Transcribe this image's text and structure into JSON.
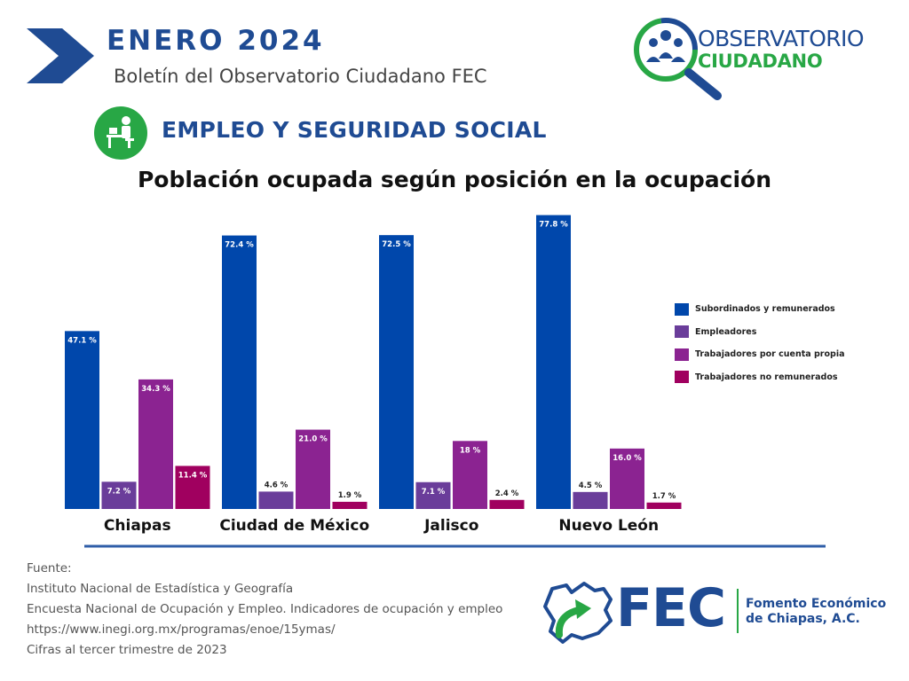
{
  "header": {
    "month": "ENERO  2024",
    "subtitle": "Boletín del Observatorio Ciudadano FEC",
    "section": "EMPLEO Y SEGURIDAD SOCIAL",
    "observatory_line1": "OBSERVATORIO",
    "observatory_line2": "CIUDADANO"
  },
  "icons": {
    "header_arrow": "chevron-arrow-icon",
    "section": "worker-at-desk-icon",
    "observatory": "magnifier-people-icon",
    "fec_map": "chiapas-map-arrow-icon"
  },
  "colors": {
    "brand_blue": "#1f4b93",
    "brand_green": "#28a745",
    "axis_line": "#2f5ea8"
  },
  "chart_data": {
    "type": "bar",
    "title": "Población ocupada según posición en la ocupación",
    "categories": [
      "Chiapas",
      "Ciudad de México",
      "Jalisco",
      "Nuevo León"
    ],
    "series": [
      {
        "name": "Subordinados y remunerados",
        "color": "#0047ab",
        "values": [
          47.1,
          72.4,
          72.5,
          77.8
        ],
        "labels": [
          "47.1 %",
          "72.4 %",
          "72.5 %",
          "77.8 %"
        ]
      },
      {
        "name": "Empleadores",
        "color": "#6a3d9a",
        "values": [
          7.2,
          4.6,
          7.1,
          4.5
        ],
        "labels": [
          "7.2 %",
          "4.6 %",
          "7.1 %",
          "4.5 %"
        ]
      },
      {
        "name": "Trabajadores por cuenta propia",
        "color": "#8b2391",
        "values": [
          34.3,
          21.0,
          18,
          16.0
        ],
        "labels": [
          "34.3 %",
          "21.0 %",
          "18 %",
          "16.0 %"
        ]
      },
      {
        "name": "Trabajadores no remunerados",
        "color": "#a0005f",
        "values": [
          11.4,
          1.9,
          2.4,
          1.7
        ],
        "labels": [
          "11.4 %",
          "1.9 %",
          "2.4 %",
          "1.7 %"
        ]
      }
    ],
    "ylim": [
      0,
      80
    ],
    "legend": "right",
    "grid": false,
    "xlabel": "",
    "ylabel": ""
  },
  "source": {
    "lines": [
      "Fuente:",
      "Instituto Nacional de Estadística y Geografía",
      "Encuesta Nacional de Ocupación y Empleo. Indicadores de ocupación y empleo",
      "https://www.inegi.org.mx/programas/enoe/15ymas/",
      "Cifras al tercer trimestre de 2023"
    ]
  },
  "footer": {
    "fec": "FEC",
    "org_line1": "Fomento Económico",
    "org_line2": "de Chiapas, A.C."
  }
}
